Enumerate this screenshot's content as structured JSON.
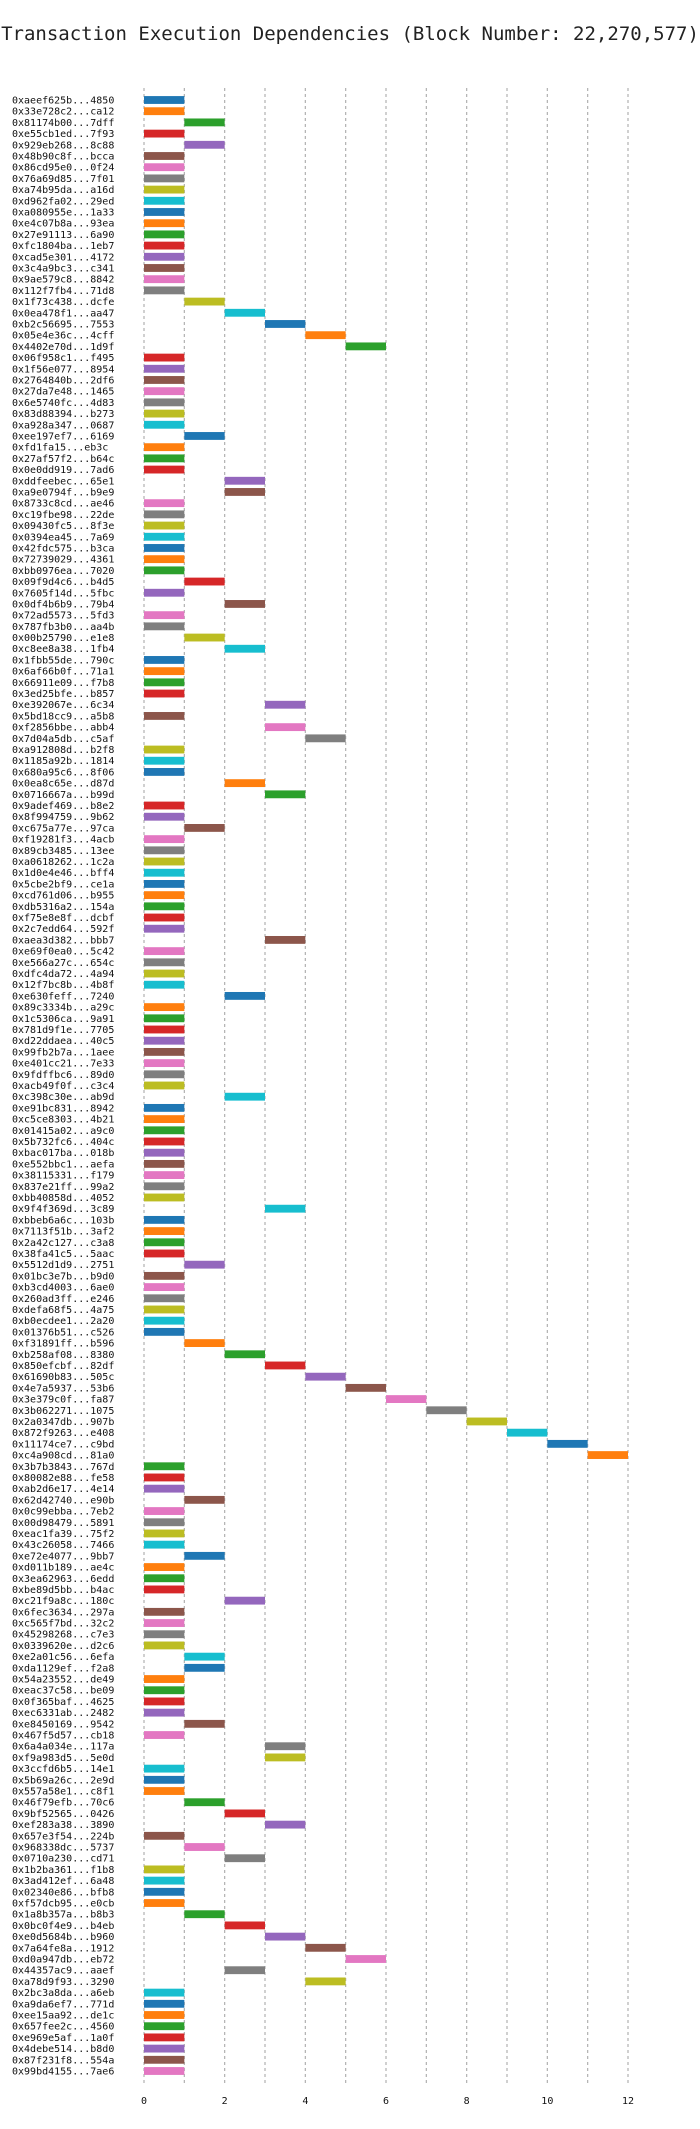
{
  "colors": [
    "#1f77b4",
    "#ff7f0e",
    "#2ca02c",
    "#d62728",
    "#9467bd",
    "#8c564b",
    "#e377c2",
    "#7f7f7f",
    "#bcbd22",
    "#17becf"
  ],
  "chart_data": {
    "type": "bar",
    "orientation": "horizontal-gantt",
    "title": "Transaction Execution Dependencies (Block Number: 22,270,577)",
    "xlabel": "",
    "ylabel": "",
    "xlim": [
      0,
      12
    ],
    "xticks": [
      0,
      2,
      4,
      6,
      8,
      10,
      12
    ],
    "grid": true,
    "bar_width": 1,
    "rows": [
      {
        "label": "0xaeef625b...4850",
        "start": 0
      },
      {
        "label": "0x33e728c2...ca12",
        "start": 0
      },
      {
        "label": "0x81174b00...7dff",
        "start": 1
      },
      {
        "label": "0xe55cb1ed...7f93",
        "start": 0
      },
      {
        "label": "0x929eb268...8c88",
        "start": 1
      },
      {
        "label": "0x48b90c8f...bcca",
        "start": 0
      },
      {
        "label": "0x86cd95e0...0f24",
        "start": 0
      },
      {
        "label": "0x76a69d85...7f01",
        "start": 0
      },
      {
        "label": "0xa74b95da...a16d",
        "start": 0
      },
      {
        "label": "0xd962fa02...29ed",
        "start": 0
      },
      {
        "label": "0xa080955e...1a33",
        "start": 0
      },
      {
        "label": "0xe4c07b8a...93ea",
        "start": 0
      },
      {
        "label": "0x27e91113...6a90",
        "start": 0
      },
      {
        "label": "0xfc1804ba...1eb7",
        "start": 0
      },
      {
        "label": "0xcad5e301...4172",
        "start": 0
      },
      {
        "label": "0x3c4a9bc3...c341",
        "start": 0
      },
      {
        "label": "0x9ae579c8...8842",
        "start": 0
      },
      {
        "label": "0x112f7fb4...71d8",
        "start": 0
      },
      {
        "label": "0x1f73c438...dcfe",
        "start": 1
      },
      {
        "label": "0x0ea478f1...aa47",
        "start": 2
      },
      {
        "label": "0xb2c56695...7553",
        "start": 3
      },
      {
        "label": "0x05e4e36c...4cff",
        "start": 4
      },
      {
        "label": "0x4402e70d...1d9f",
        "start": 5
      },
      {
        "label": "0x06f958c1...f495",
        "start": 0
      },
      {
        "label": "0x1f56e077...8954",
        "start": 0
      },
      {
        "label": "0x2764840b...2df6",
        "start": 0
      },
      {
        "label": "0x27da7e48...1465",
        "start": 0
      },
      {
        "label": "0x6e5740fc...4d83",
        "start": 0
      },
      {
        "label": "0x83d88394...b273",
        "start": 0
      },
      {
        "label": "0xa928a347...0687",
        "start": 0
      },
      {
        "label": "0xee197ef7...6169",
        "start": 1
      },
      {
        "label": "0xfd1fa15...eb3c",
        "start": 0
      },
      {
        "label": "0x27af57f2...b64c",
        "start": 0
      },
      {
        "label": "0x0e0dd919...7ad6",
        "start": 0
      },
      {
        "label": "0xddfeebec...65e1",
        "start": 2
      },
      {
        "label": "0xa9e0794f...b9e9",
        "start": 2
      },
      {
        "label": "0x8733c8cd...ae46",
        "start": 0
      },
      {
        "label": "0xc19fbe98...22de",
        "start": 0
      },
      {
        "label": "0x09430fc5...8f3e",
        "start": 0
      },
      {
        "label": "0x0394ea45...7a69",
        "start": 0
      },
      {
        "label": "0x42fdc575...b3ca",
        "start": 0
      },
      {
        "label": "0x72739029...4361",
        "start": 0
      },
      {
        "label": "0xbb0976ea...7020",
        "start": 0
      },
      {
        "label": "0x09f9d4c6...b4d5",
        "start": 1
      },
      {
        "label": "0x7605f14d...5fbc",
        "start": 0
      },
      {
        "label": "0x0df4b6b9...79b4",
        "start": 2
      },
      {
        "label": "0x72ad5573...5fd3",
        "start": 0
      },
      {
        "label": "0x787fb3b0...aa4b",
        "start": 0
      },
      {
        "label": "0x00b25790...e1e8",
        "start": 1
      },
      {
        "label": "0xc8ee8a38...1fb4",
        "start": 2
      },
      {
        "label": "0x1fbb55de...790c",
        "start": 0
      },
      {
        "label": "0x6af66b0f...71a1",
        "start": 0
      },
      {
        "label": "0x66911e09...f7b8",
        "start": 0
      },
      {
        "label": "0x3ed25bfe...b857",
        "start": 0
      },
      {
        "label": "0xe392067e...6c34",
        "start": 3
      },
      {
        "label": "0x5bd18cc9...a5b8",
        "start": 0
      },
      {
        "label": "0xf2856bbe...abb4",
        "start": 3
      },
      {
        "label": "0x7d04a5db...c5af",
        "start": 4
      },
      {
        "label": "0xa912808d...b2f8",
        "start": 0
      },
      {
        "label": "0x1185a92b...1814",
        "start": 0
      },
      {
        "label": "0x680a95c6...8f06",
        "start": 0
      },
      {
        "label": "0x0ea8c65e...d87d",
        "start": 2
      },
      {
        "label": "0x0716667a...b99d",
        "start": 3
      },
      {
        "label": "0x9adef469...b8e2",
        "start": 0
      },
      {
        "label": "0x8f994759...9b62",
        "start": 0
      },
      {
        "label": "0xc675a77e...97ca",
        "start": 1
      },
      {
        "label": "0xf19281f3...4acb",
        "start": 0
      },
      {
        "label": "0x89cb3485...13ee",
        "start": 0
      },
      {
        "label": "0xa0618262...1c2a",
        "start": 0
      },
      {
        "label": "0x1d0e4e46...bff4",
        "start": 0
      },
      {
        "label": "0x5cbe2bf9...ce1a",
        "start": 0
      },
      {
        "label": "0xcd761d06...b955",
        "start": 0
      },
      {
        "label": "0xdb5316a2...154a",
        "start": 0
      },
      {
        "label": "0xf75e8e8f...dcbf",
        "start": 0
      },
      {
        "label": "0x2c7edd64...592f",
        "start": 0
      },
      {
        "label": "0xaea3d382...bbb7",
        "start": 3
      },
      {
        "label": "0xe69f0ea0...5c42",
        "start": 0
      },
      {
        "label": "0xe566a27c...654c",
        "start": 0
      },
      {
        "label": "0xdfc4da72...4a94",
        "start": 0
      },
      {
        "label": "0x12f7bc8b...4b8f",
        "start": 0
      },
      {
        "label": "0xe630feff...7240",
        "start": 2
      },
      {
        "label": "0x89c3334b...a29c",
        "start": 0
      },
      {
        "label": "0x1c5306ca...9a91",
        "start": 0
      },
      {
        "label": "0x781d9f1e...7705",
        "start": 0
      },
      {
        "label": "0xd22ddaea...40c5",
        "start": 0
      },
      {
        "label": "0x99fb2b7a...1aee",
        "start": 0
      },
      {
        "label": "0xe401cc21...7e33",
        "start": 0
      },
      {
        "label": "0x9fdffbc6...89d0",
        "start": 0
      },
      {
        "label": "0xacb49f0f...c3c4",
        "start": 0
      },
      {
        "label": "0xc398c30e...ab9d",
        "start": 2
      },
      {
        "label": "0xe91bc831...8942",
        "start": 0
      },
      {
        "label": "0xc5ce8303...4b21",
        "start": 0
      },
      {
        "label": "0x01415a02...a9c0",
        "start": 0
      },
      {
        "label": "0x5b732fc6...404c",
        "start": 0
      },
      {
        "label": "0xbac017ba...018b",
        "start": 0
      },
      {
        "label": "0xe552bbc1...aefa",
        "start": 0
      },
      {
        "label": "0x38115331...f179",
        "start": 0
      },
      {
        "label": "0x837e21ff...99a2",
        "start": 0
      },
      {
        "label": "0xbb40858d...4052",
        "start": 0
      },
      {
        "label": "0x9f4f369d...3c89",
        "start": 3
      },
      {
        "label": "0xbbeb6a6c...103b",
        "start": 0
      },
      {
        "label": "0x7113f51b...3af2",
        "start": 0
      },
      {
        "label": "0x2a42c127...c3a8",
        "start": 0
      },
      {
        "label": "0x38fa41c5...5aac",
        "start": 0
      },
      {
        "label": "0x5512d1d9...2751",
        "start": 1
      },
      {
        "label": "0x01bc3e7b...b9d0",
        "start": 0
      },
      {
        "label": "0xb3cd4003...6ae0",
        "start": 0
      },
      {
        "label": "0x260ad3ff...e246",
        "start": 0
      },
      {
        "label": "0xdefa68f5...4a75",
        "start": 0
      },
      {
        "label": "0xb0ecdee1...2a20",
        "start": 0
      },
      {
        "label": "0x01376b51...c526",
        "start": 0
      },
      {
        "label": "0xf31891ff...b596",
        "start": 1
      },
      {
        "label": "0xb258af08...8380",
        "start": 2
      },
      {
        "label": "0x850efcbf...82df",
        "start": 3
      },
      {
        "label": "0x61690b83...505c",
        "start": 4
      },
      {
        "label": "0x4e7a5937...53b6",
        "start": 5
      },
      {
        "label": "0x3e379c0f...fa87",
        "start": 6
      },
      {
        "label": "0x3b062271...1075",
        "start": 7
      },
      {
        "label": "0x2a0347db...907b",
        "start": 8
      },
      {
        "label": "0x872f9263...e408",
        "start": 9
      },
      {
        "label": "0x11174ce7...c9bd",
        "start": 10
      },
      {
        "label": "0xc4a908cd...81a0",
        "start": 11
      },
      {
        "label": "0x3b7b3843...767d",
        "start": 0
      },
      {
        "label": "0x80082e88...fe58",
        "start": 0
      },
      {
        "label": "0xab2d6e17...4e14",
        "start": 0
      },
      {
        "label": "0x62d42740...e90b",
        "start": 1
      },
      {
        "label": "0x0c99ebba...7eb2",
        "start": 0
      },
      {
        "label": "0x00d98479...5891",
        "start": 0
      },
      {
        "label": "0xeac1fa39...75f2",
        "start": 0
      },
      {
        "label": "0x43c26058...7466",
        "start": 0
      },
      {
        "label": "0xe72e4077...9bb7",
        "start": 1
      },
      {
        "label": "0xd011b189...ae4c",
        "start": 0
      },
      {
        "label": "0x3ea62963...6edd",
        "start": 0
      },
      {
        "label": "0xbe89d5bb...b4ac",
        "start": 0
      },
      {
        "label": "0xc21f9a8c...180c",
        "start": 2
      },
      {
        "label": "0x6fec3634...297a",
        "start": 0
      },
      {
        "label": "0xc565f7bd...32c2",
        "start": 0
      },
      {
        "label": "0x45298268...c7e3",
        "start": 0
      },
      {
        "label": "0x0339620e...d2c6",
        "start": 0
      },
      {
        "label": "0xe2a01c56...6efa",
        "start": 1
      },
      {
        "label": "0xda1129ef...f2a8",
        "start": 1
      },
      {
        "label": "0x54a23552...de49",
        "start": 0
      },
      {
        "label": "0xeac37c58...be09",
        "start": 0
      },
      {
        "label": "0x0f365baf...4625",
        "start": 0
      },
      {
        "label": "0xec6331ab...2482",
        "start": 0
      },
      {
        "label": "0xe8450169...9542",
        "start": 1
      },
      {
        "label": "0x467f5d57...cb18",
        "start": 0
      },
      {
        "label": "0x6a4a034e...117a",
        "start": 3
      },
      {
        "label": "0xf9a983d5...5e0d",
        "start": 3
      },
      {
        "label": "0x3ccfd6b5...14e1",
        "start": 0
      },
      {
        "label": "0x5b69a26c...2e9d",
        "start": 0
      },
      {
        "label": "0x557a58e1...c8f1",
        "start": 0
      },
      {
        "label": "0x46f79efb...70c6",
        "start": 1
      },
      {
        "label": "0x9bf52565...0426",
        "start": 2
      },
      {
        "label": "0xef283a38...3890",
        "start": 3
      },
      {
        "label": "0x657e3f54...224b",
        "start": 0
      },
      {
        "label": "0x968338dc...5737",
        "start": 1
      },
      {
        "label": "0x0710a230...cd71",
        "start": 2
      },
      {
        "label": "0x1b2ba361...f1b8",
        "start": 0
      },
      {
        "label": "0x3ad412ef...6a48",
        "start": 0
      },
      {
        "label": "0x02340e86...bfb8",
        "start": 0
      },
      {
        "label": "0xf57dcb95...e0cb",
        "start": 0
      },
      {
        "label": "0x1a8b357a...b8b3",
        "start": 1
      },
      {
        "label": "0x0bc0f4e9...b4eb",
        "start": 2
      },
      {
        "label": "0xe0d5684b...b960",
        "start": 3
      },
      {
        "label": "0x7a64fe8a...1912",
        "start": 4
      },
      {
        "label": "0xd0a947db...eb72",
        "start": 5
      },
      {
        "label": "0x44357ac9...aaef",
        "start": 2
      },
      {
        "label": "0xa78d9f93...3290",
        "start": 4
      },
      {
        "label": "0x2bc3a8da...a6eb",
        "start": 0
      },
      {
        "label": "0xa9da6ef7...771d",
        "start": 0
      },
      {
        "label": "0xee15aa92...de1c",
        "start": 0
      },
      {
        "label": "0x657fee2c...4560",
        "start": 0
      },
      {
        "label": "0xe969e5af...1a0f",
        "start": 0
      },
      {
        "label": "0x4debe514...b8d0",
        "start": 0
      },
      {
        "label": "0x87f231f8...554a",
        "start": 0
      },
      {
        "label": "0x99bd4155...7ae6",
        "start": 0
      }
    ]
  }
}
